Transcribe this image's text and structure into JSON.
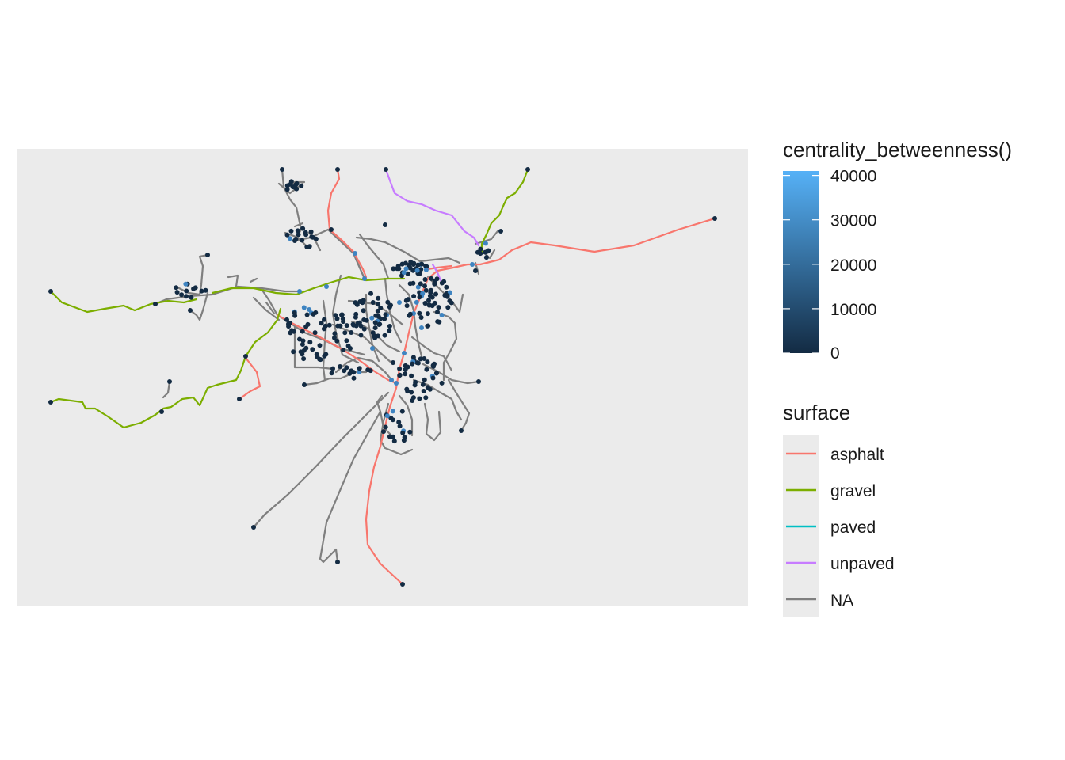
{
  "legend_color": {
    "title": "centrality_betweenness()",
    "ticks": [
      {
        "label": "40000",
        "value": 40000
      },
      {
        "label": "30000",
        "value": 30000
      },
      {
        "label": "20000",
        "value": 20000
      },
      {
        "label": "10000",
        "value": 10000
      },
      {
        "label": "0",
        "value": 0
      }
    ],
    "range": [
      0,
      41000
    ],
    "low_color": "#132B43",
    "high_color": "#56B1F7"
  },
  "legend_surface": {
    "title": "surface",
    "items": [
      {
        "label": "asphalt",
        "color": "#F8766D"
      },
      {
        "label": "gravel",
        "color": "#7CAE00"
      },
      {
        "label": "paved",
        "color": "#00BFC4"
      },
      {
        "label": "unpaved",
        "color": "#C77CFF"
      },
      {
        "label": "NA",
        "color": "#7f7f7f"
      }
    ]
  },
  "colors": {
    "panel_background": "#EBEBEB",
    "node_default": "#132B43",
    "node_high": "#3E84C1"
  }
}
